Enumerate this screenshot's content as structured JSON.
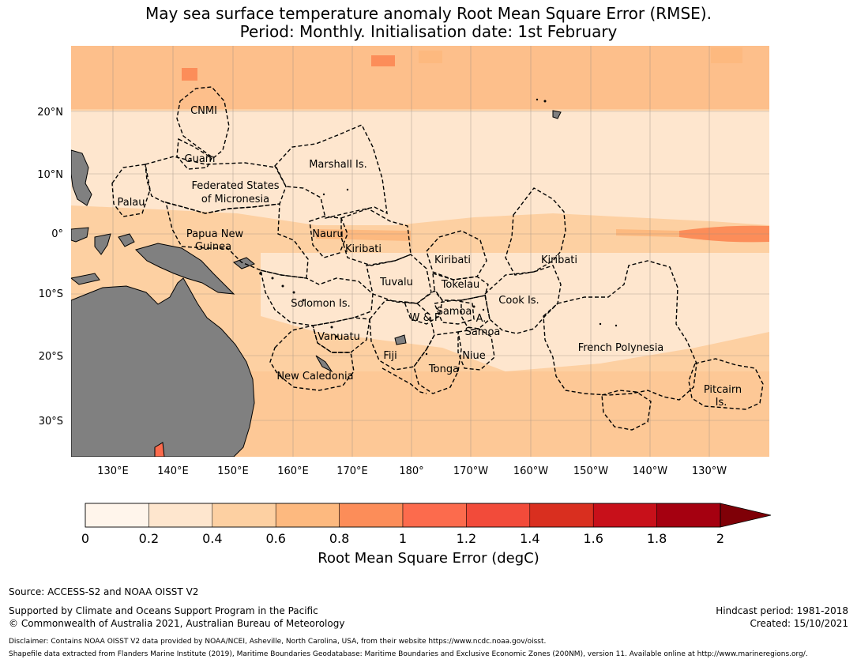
{
  "title": {
    "line1": "May sea surface temperature anomaly Root Mean Square Error (RMSE).",
    "line2": "Period: Monthly. Initialisation date: 1st February"
  },
  "map": {
    "lat_labels": [
      "20°N",
      "10°N",
      "0°",
      "10°S",
      "20°S",
      "30°S"
    ],
    "lon_labels": [
      "130°E",
      "140°E",
      "150°E",
      "160°E",
      "170°E",
      "180°",
      "170°W",
      "160°W",
      "150°W",
      "140°W",
      "130°W"
    ],
    "land_color": "#808080",
    "regions": [
      {
        "name": "CNMI"
      },
      {
        "name": "Guam"
      },
      {
        "name": "Marshall Is."
      },
      {
        "name": "Federated States"
      },
      {
        "name": "of Micronesia"
      },
      {
        "name": "Palau"
      },
      {
        "name": "Papua New"
      },
      {
        "name": "Guinea"
      },
      {
        "name": "Nauru"
      },
      {
        "name": "Kiribati"
      },
      {
        "name": "Kiribati"
      },
      {
        "name": "Kiribati"
      },
      {
        "name": "Tuvalu"
      },
      {
        "name": "Tokelau"
      },
      {
        "name": "Solomon Is."
      },
      {
        "name": "Samoa"
      },
      {
        "name": "W & F"
      },
      {
        "name": "A."
      },
      {
        "name": "Samoa"
      },
      {
        "name": "Cook Is."
      },
      {
        "name": "Vanuatu"
      },
      {
        "name": "Fiji"
      },
      {
        "name": "Niue"
      },
      {
        "name": "Tonga"
      },
      {
        "name": "French Polynesia"
      },
      {
        "name": "New Caledonia"
      },
      {
        "name": "Pitcairn"
      },
      {
        "name": "Is."
      }
    ]
  },
  "colorbar": {
    "ticks": [
      "0",
      "0.2",
      "0.4",
      "0.6",
      "0.8",
      "1",
      "1.2",
      "1.4",
      "1.6",
      "1.8",
      "2"
    ],
    "colors": [
      "#fff5eb",
      "#fee6ce",
      "#fdd0a2",
      "#fdb97f",
      "#fc8d59",
      "#fc6b4d",
      "#f24b3a",
      "#d92f1f",
      "#c8101a",
      "#a50010",
      "#7f0007"
    ],
    "label": "Root Mean Square Error (degC)"
  },
  "footer": {
    "source": "Source: ACCESS-S2 and NOAA OISST V2",
    "support": "Supported by Climate and Oceans Support Program in the Pacific",
    "copyright": "© Commonwealth of Australia 2021, Australian Bureau of Meteorology",
    "hindcast": "Hindcast period: 1981-2018",
    "created": "Created: 15/10/2021",
    "disclaimer": "Disclaimer: Contains NOAA OISST V2 data provided by NOAA/NCEI, Asheville, North Carolina, USA, from their website https://www.ncdc.noaa.gov/oisst.",
    "shapefile": "Shapefile data extracted from Flanders Marine Institute (2019), Maritime Boundaries Geodatabase: Maritime Boundaries and Exclusive Economic Zones (200NM), version 11. Available online at http://www.marineregions.org/."
  }
}
